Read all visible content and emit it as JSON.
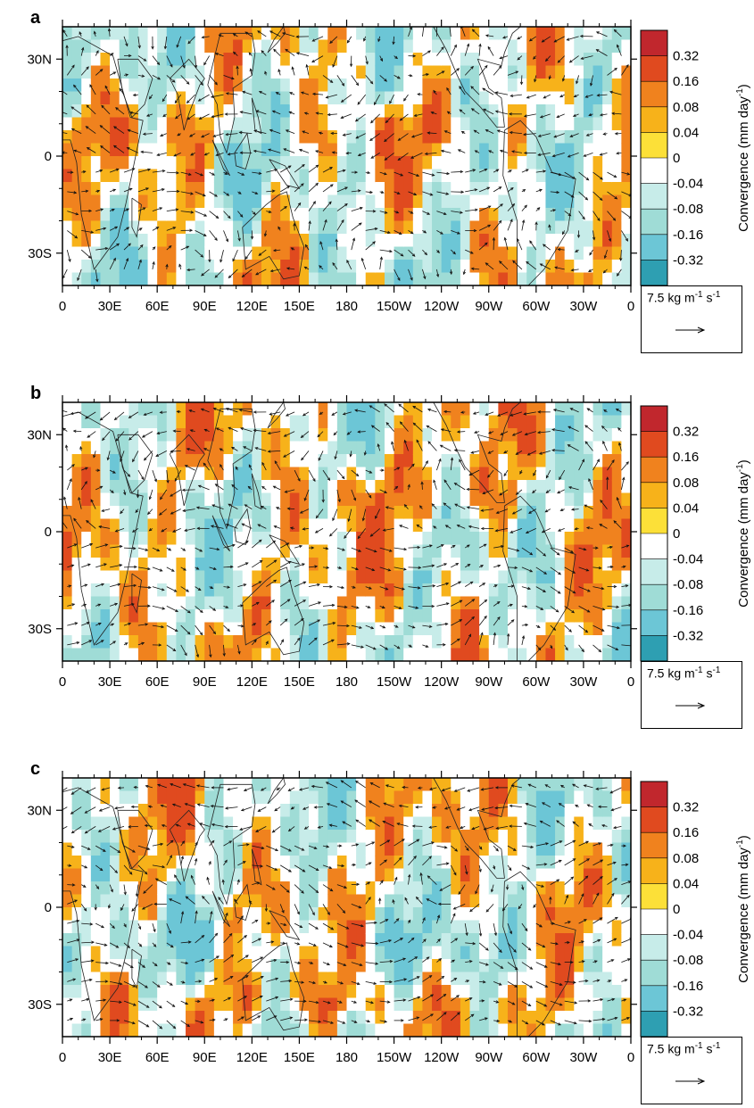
{
  "chart_data": [
    {
      "panel_label": "a",
      "type": "heatmap",
      "overlay": "vector",
      "x_ticks": [
        "0",
        "30E",
        "60E",
        "90E",
        "120E",
        "150E",
        "180",
        "150W",
        "120W",
        "90W",
        "60W",
        "30W",
        "0"
      ],
      "y_ticks": [
        "30N",
        "0",
        "30S"
      ],
      "xlim": [
        0,
        360
      ],
      "ylim": [
        -40,
        40
      ],
      "colorbar": {
        "title": "Convergence (mm day",
        "title_exp": "-1",
        "title_close": ")",
        "levels": [
          "0.32",
          "0.16",
          "0.08",
          "0.04",
          "0",
          "-0.04",
          "-0.08",
          "-0.16",
          "-0.32"
        ],
        "colors": [
          "#c1272d",
          "#e04a1f",
          "#f0821e",
          "#f7b21a",
          "#fce038",
          "#ffffff",
          "#c7ece9",
          "#9fdcd6",
          "#6cc6d6",
          "#2e9fb2"
        ]
      },
      "reference_vector": {
        "magnitude": "7.5",
        "unit_text": "kg m",
        "exp1": "-1",
        "unit_text2": " s",
        "exp2": "-1"
      }
    },
    {
      "panel_label": "b",
      "type": "heatmap",
      "overlay": "vector",
      "x_ticks": [
        "0",
        "30E",
        "60E",
        "90E",
        "120E",
        "150E",
        "180",
        "150W",
        "120W",
        "90W",
        "60W",
        "30W",
        "0"
      ],
      "y_ticks": [
        "30N",
        "0",
        "30S"
      ],
      "xlim": [
        0,
        360
      ],
      "ylim": [
        -40,
        40
      ],
      "colorbar": {
        "title": "Convergence (mm day",
        "title_exp": "-1",
        "title_close": ")",
        "levels": [
          "0.32",
          "0.16",
          "0.08",
          "0.04",
          "0",
          "-0.04",
          "-0.08",
          "-0.16",
          "-0.32"
        ],
        "colors": [
          "#c1272d",
          "#e04a1f",
          "#f0821e",
          "#f7b21a",
          "#fce038",
          "#ffffff",
          "#c7ece9",
          "#9fdcd6",
          "#6cc6d6",
          "#2e9fb2"
        ]
      },
      "reference_vector": {
        "magnitude": "7.5",
        "unit_text": "kg m",
        "exp1": "-1",
        "unit_text2": " s",
        "exp2": "-1"
      }
    },
    {
      "panel_label": "c",
      "type": "heatmap",
      "overlay": "vector",
      "x_ticks": [
        "0",
        "30E",
        "60E",
        "90E",
        "120E",
        "150E",
        "180",
        "150W",
        "120W",
        "90W",
        "60W",
        "30W",
        "0"
      ],
      "y_ticks": [
        "30N",
        "0",
        "30S"
      ],
      "xlim": [
        0,
        360
      ],
      "ylim": [
        -40,
        40
      ],
      "colorbar": {
        "title": "Convergence (mm day",
        "title_exp": "-1",
        "title_close": ")",
        "levels": [
          "0.32",
          "0.16",
          "0.08",
          "0.04",
          "0",
          "-0.04",
          "-0.08",
          "-0.16",
          "-0.32"
        ],
        "colors": [
          "#c1272d",
          "#e04a1f",
          "#f0821e",
          "#f7b21a",
          "#fce038",
          "#ffffff",
          "#c7ece9",
          "#9fdcd6",
          "#6cc6d6",
          "#2e9fb2"
        ]
      },
      "reference_vector": {
        "magnitude": "7.5",
        "unit_text": "kg m",
        "exp1": "-1",
        "unit_text2": " s",
        "exp2": "-1"
      }
    }
  ]
}
